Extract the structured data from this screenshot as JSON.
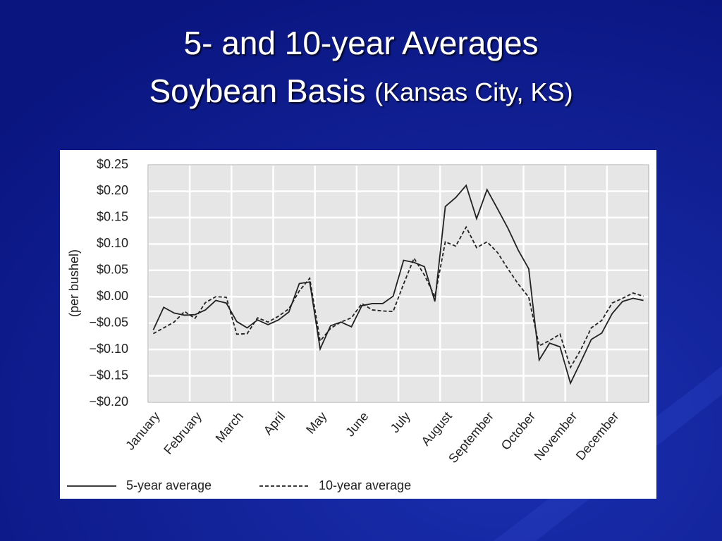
{
  "title": "5- and 10-year Averages",
  "subtitle": "Soybean Basis",
  "subtitle_note": "(Kansas City, KS)",
  "chart_data": {
    "type": "line",
    "ylabel": "(per bushel)",
    "xlim": [
      0,
      12
    ],
    "xticks": [
      {
        "value": 0,
        "label": "January"
      },
      {
        "value": 1,
        "label": "February"
      },
      {
        "value": 2,
        "label": "March"
      },
      {
        "value": 3,
        "label": "April"
      },
      {
        "value": 4,
        "label": "May"
      },
      {
        "value": 5,
        "label": "June"
      },
      {
        "value": 6,
        "label": "July"
      },
      {
        "value": 7,
        "label": "August"
      },
      {
        "value": 8,
        "label": "September"
      },
      {
        "value": 9,
        "label": "October"
      },
      {
        "value": 10,
        "label": "November"
      },
      {
        "value": 11,
        "label": "December"
      }
    ],
    "ylim": [
      -0.2,
      0.25
    ],
    "yticks": [
      {
        "value": -0.2,
        "label": "−$0.20"
      },
      {
        "value": -0.15,
        "label": "−$0.15"
      },
      {
        "value": -0.1,
        "label": "−$0.10"
      },
      {
        "value": -0.05,
        "label": "−$0.05"
      },
      {
        "value": 0,
        "label": "$0.00"
      },
      {
        "value": 0.05,
        "label": "$0.05"
      },
      {
        "value": 0.1,
        "label": "$0.10"
      },
      {
        "value": 0.15,
        "label": "$0.15"
      },
      {
        "value": 0.2,
        "label": "$0.20"
      },
      {
        "value": 0.25,
        "label": "$0.25"
      }
    ],
    "grid": true,
    "legend": "bottom",
    "x": [
      0.125,
      0.375,
      0.625,
      0.875,
      1.125,
      1.375,
      1.625,
      1.875,
      2.125,
      2.375,
      2.625,
      2.875,
      3.125,
      3.375,
      3.625,
      3.875,
      4.125,
      4.375,
      4.625,
      4.875,
      5.125,
      5.375,
      5.625,
      5.875,
      6.125,
      6.375,
      6.625,
      6.875,
      7.125,
      7.375,
      7.625,
      7.875,
      8.125,
      8.375,
      8.625,
      8.875,
      9.125,
      9.375,
      9.625,
      9.875,
      10.125,
      10.375,
      10.625,
      10.875,
      11.125,
      11.375,
      11.625,
      11.875
    ],
    "series": [
      {
        "name": "5-year average",
        "color": "#222222",
        "dash": false,
        "values": [
          -0.063,
          -0.02,
          -0.031,
          -0.035,
          -0.034,
          -0.025,
          -0.007,
          -0.012,
          -0.047,
          -0.059,
          -0.044,
          -0.053,
          -0.044,
          -0.029,
          0.025,
          0.028,
          -0.099,
          -0.055,
          -0.048,
          -0.057,
          -0.017,
          -0.013,
          -0.013,
          0.001,
          0.069,
          0.065,
          0.057,
          -0.009,
          0.171,
          0.188,
          0.211,
          0.148,
          0.203,
          0.167,
          0.13,
          0.088,
          0.053,
          -0.12,
          -0.088,
          -0.095,
          -0.164,
          -0.123,
          -0.081,
          -0.069,
          -0.032,
          -0.009,
          -0.003,
          -0.007
        ]
      },
      {
        "name": "10-year average",
        "color": "#222222",
        "dash": true,
        "values": [
          -0.07,
          -0.059,
          -0.048,
          -0.028,
          -0.041,
          -0.011,
          0.0,
          -0.001,
          -0.071,
          -0.07,
          -0.04,
          -0.048,
          -0.037,
          -0.023,
          0.011,
          0.035,
          -0.084,
          -0.06,
          -0.048,
          -0.04,
          -0.013,
          -0.025,
          -0.027,
          -0.028,
          0.024,
          0.073,
          0.041,
          0.0,
          0.104,
          0.096,
          0.132,
          0.093,
          0.104,
          0.084,
          0.053,
          0.024,
          -0.001,
          -0.093,
          -0.083,
          -0.071,
          -0.134,
          -0.1,
          -0.059,
          -0.045,
          -0.012,
          -0.003,
          0.007,
          0.001
        ]
      }
    ]
  }
}
